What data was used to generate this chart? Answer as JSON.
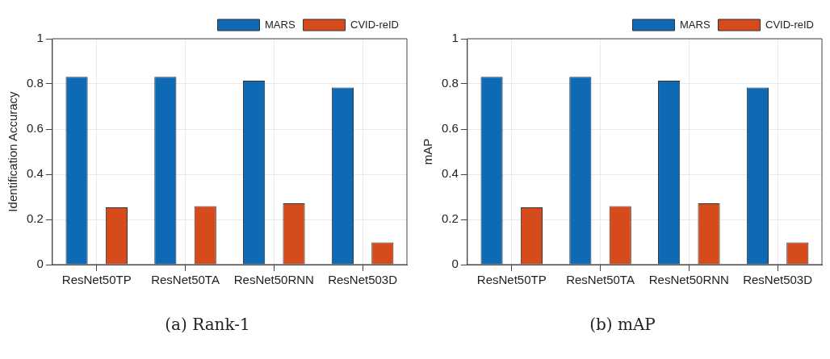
{
  "chart_data": [
    {
      "type": "bar",
      "title": "(a) Rank-1",
      "ylabel": "Identification Accuracy",
      "categories": [
        "ResNet50TP",
        "ResNet50TA",
        "ResNet50RNN",
        "ResNet503D"
      ],
      "series": [
        {
          "name": "MARS",
          "color": "#0e6ab5",
          "values": [
            0.831,
            0.831,
            0.814,
            0.784
          ]
        },
        {
          "name": "CVID-reID",
          "color": "#d54b1c",
          "values": [
            0.254,
            0.259,
            0.271,
            0.098
          ]
        }
      ],
      "ylim": [
        0,
        1
      ],
      "yticks": [
        0,
        0.2,
        0.4,
        0.6,
        0.8,
        1
      ],
      "grid": true,
      "legend": "top right"
    },
    {
      "type": "bar",
      "title": "(b) mAP",
      "ylabel": "mAP",
      "categories": [
        "ResNet50TP",
        "ResNet50TA",
        "ResNet50RNN",
        "ResNet503D"
      ],
      "series": [
        {
          "name": "MARS",
          "color": "#0e6ab5",
          "values": [
            0.831,
            0.831,
            0.814,
            0.784
          ]
        },
        {
          "name": "CVID-reID",
          "color": "#d54b1c",
          "values": [
            0.254,
            0.259,
            0.271,
            0.098
          ]
        }
      ],
      "ylim": [
        0,
        1
      ],
      "yticks": [
        0,
        0.2,
        0.4,
        0.6,
        0.8,
        1
      ],
      "grid": true,
      "legend": "top right"
    }
  ]
}
